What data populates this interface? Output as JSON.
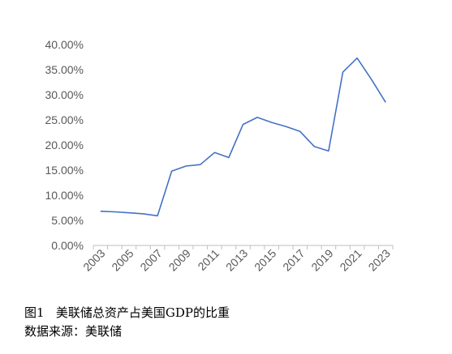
{
  "caption": {
    "title": "图1   美联储总资产占美国GDP的比重",
    "source": "数据来源：美联储"
  },
  "chart_data": {
    "type": "line",
    "x": [
      2003,
      2004,
      2005,
      2006,
      2007,
      2008,
      2009,
      2010,
      2011,
      2012,
      2013,
      2014,
      2015,
      2016,
      2017,
      2018,
      2019,
      2020,
      2021,
      2022,
      2023
    ],
    "series": [
      {
        "values": [
          6.8,
          6.7,
          6.5,
          6.3,
          5.9,
          14.8,
          15.8,
          16.1,
          18.5,
          17.5,
          24.1,
          25.5,
          24.5,
          23.7,
          22.7,
          19.7,
          18.8,
          34.5,
          37.3,
          33.1,
          28.5
        ],
        "color": "#4472C4"
      }
    ],
    "xticks": [
      "2003",
      "2005",
      "2007",
      "2009",
      "2011",
      "2013",
      "2015",
      "2017",
      "2019",
      "2021",
      "2023"
    ],
    "yticks": [
      "0.00%",
      "5.00%",
      "10.00%",
      "15.00%",
      "20.00%",
      "25.00%",
      "30.00%",
      "35.00%",
      "40.00%"
    ],
    "ylim": [
      0,
      40
    ],
    "grid": false,
    "legend": "none"
  }
}
